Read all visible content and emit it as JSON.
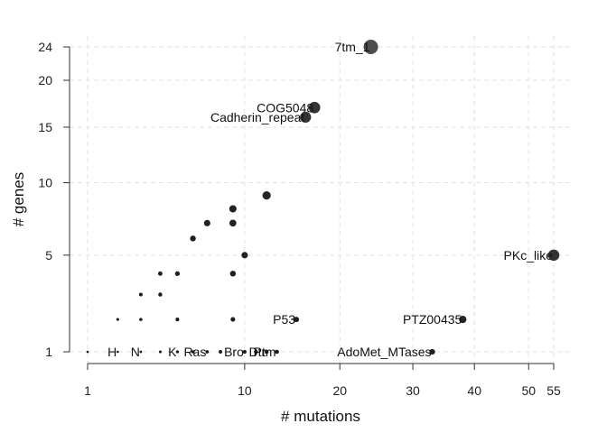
{
  "chart_data": {
    "type": "scatter",
    "title": "",
    "xlabel": "# mutations",
    "ylabel": "# genes",
    "xlim": [
      1,
      55
    ],
    "ylim": [
      1,
      24
    ],
    "scale": "sqrt",
    "grid": true,
    "x_ticks": [
      1,
      10,
      20,
      30,
      40,
      50,
      55
    ],
    "y_ticks": [
      1,
      5,
      10,
      15,
      20,
      24
    ],
    "points": [
      {
        "x": 24,
        "y": 24,
        "label": "7tm_1"
      },
      {
        "x": 17,
        "y": 17,
        "label": "COG5048"
      },
      {
        "x": 16,
        "y": 16,
        "label": "Cadherin_repeat"
      },
      {
        "x": 12,
        "y": 9,
        "label": ""
      },
      {
        "x": 9,
        "y": 8,
        "label": ""
      },
      {
        "x": 7,
        "y": 7,
        "label": ""
      },
      {
        "x": 9,
        "y": 7,
        "label": ""
      },
      {
        "x": 6,
        "y": 6,
        "label": ""
      },
      {
        "x": 10,
        "y": 5,
        "label": ""
      },
      {
        "x": 55,
        "y": 5,
        "label": "PKc_like"
      },
      {
        "x": 4,
        "y": 4,
        "label": ""
      },
      {
        "x": 5,
        "y": 4,
        "label": ""
      },
      {
        "x": 9,
        "y": 4,
        "label": ""
      },
      {
        "x": 3,
        "y": 3,
        "label": ""
      },
      {
        "x": 4,
        "y": 3,
        "label": ""
      },
      {
        "x": 2,
        "y": 2,
        "label": ""
      },
      {
        "x": 3,
        "y": 2,
        "label": ""
      },
      {
        "x": 5,
        "y": 2,
        "label": ""
      },
      {
        "x": 9,
        "y": 2,
        "label": ""
      },
      {
        "x": 15,
        "y": 2,
        "label": "P53"
      },
      {
        "x": 38,
        "y": 2,
        "label": "PTZ00435"
      },
      {
        "x": 1,
        "y": 1,
        "label": ""
      },
      {
        "x": 2,
        "y": 1,
        "label": "H"
      },
      {
        "x": 3,
        "y": 1,
        "label": "N"
      },
      {
        "x": 4,
        "y": 1,
        "label": ""
      },
      {
        "x": 5,
        "y": 1,
        "label": "K"
      },
      {
        "x": 6,
        "y": 1,
        "label": ""
      },
      {
        "x": 7,
        "y": 1,
        "label": "Ras"
      },
      {
        "x": 8,
        "y": 1,
        "label": ""
      },
      {
        "x": 10,
        "y": 1,
        "label": "Bro"
      },
      {
        "x": 11,
        "y": 1,
        "label": ""
      },
      {
        "x": 12,
        "y": 1,
        "label": "Dtr"
      },
      {
        "x": 13,
        "y": 1,
        "label": "Ptm"
      },
      {
        "x": 33,
        "y": 1,
        "label": "AdoMet_MTases"
      }
    ]
  }
}
